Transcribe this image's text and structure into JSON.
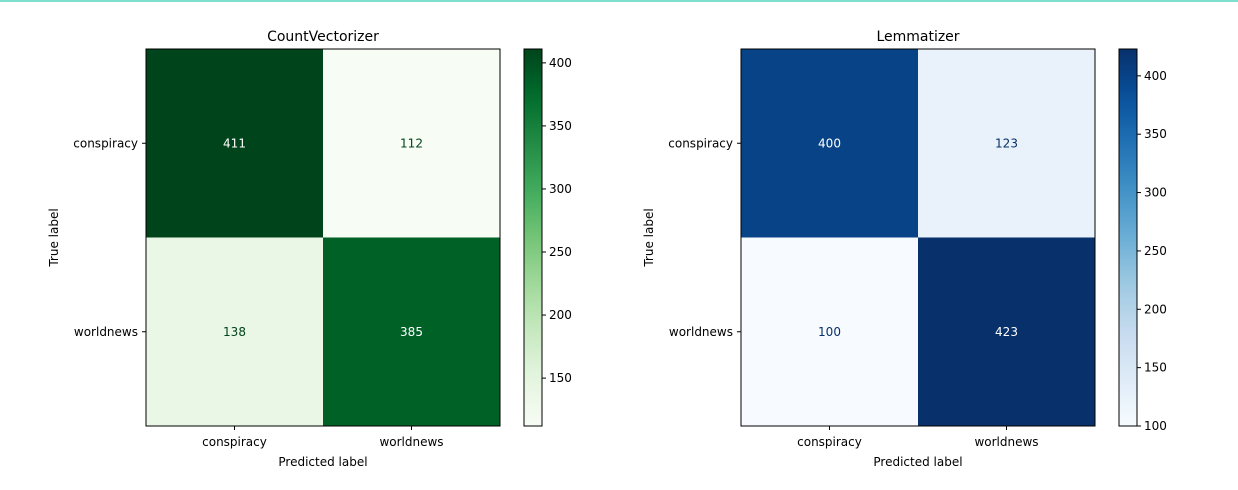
{
  "chart_data": [
    {
      "type": "heatmap",
      "title": "CountVectorizer",
      "xlabel": "Predicted label",
      "ylabel": "True label",
      "x_categories": [
        "conspiracy",
        "worldnews"
      ],
      "y_categories": [
        "conspiracy",
        "worldnews"
      ],
      "values": [
        [
          411,
          112
        ],
        [
          138,
          385
        ]
      ],
      "colormap": "Greens",
      "colorbar_ticks": [
        150,
        200,
        250,
        300,
        350,
        400
      ],
      "colorbar_range": [
        112,
        411
      ],
      "colors": {
        "low": "#f7fcf5",
        "high": "#00441b"
      }
    },
    {
      "type": "heatmap",
      "title": "Lemmatizer",
      "xlabel": "Predicted label",
      "ylabel": "True label",
      "x_categories": [
        "conspiracy",
        "worldnews"
      ],
      "y_categories": [
        "conspiracy",
        "worldnews"
      ],
      "values": [
        [
          400,
          123
        ],
        [
          100,
          423
        ]
      ],
      "colormap": "Blues",
      "colorbar_ticks": [
        100,
        150,
        200,
        250,
        300,
        350,
        400
      ],
      "colorbar_range": [
        100,
        423
      ],
      "colors": {
        "low": "#f7fbff",
        "high": "#08306b"
      }
    }
  ]
}
